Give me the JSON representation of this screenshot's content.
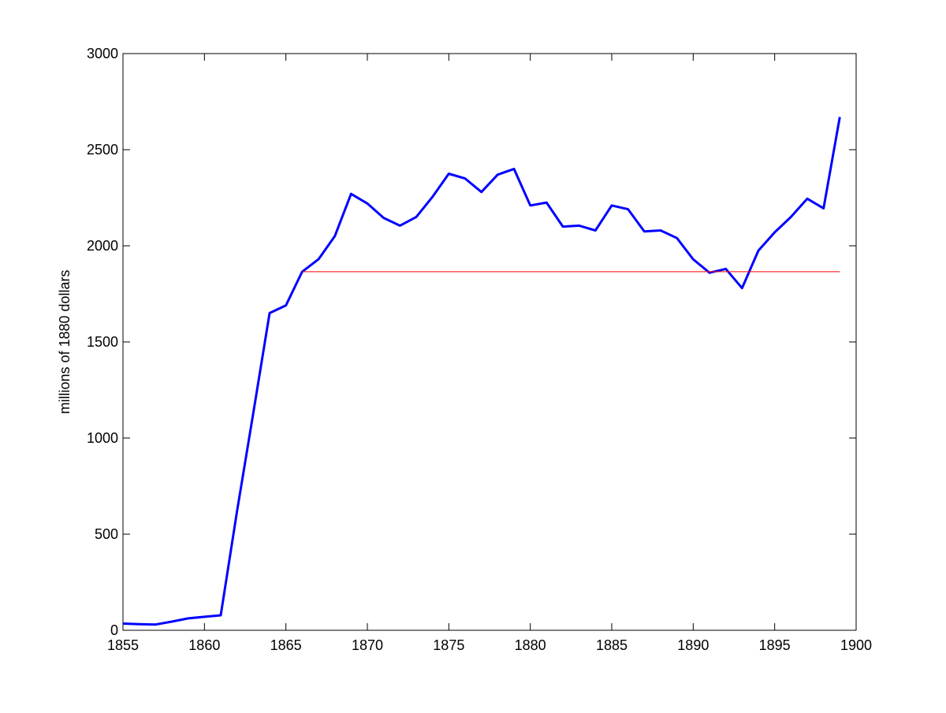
{
  "chart_data": {
    "type": "line",
    "title": "",
    "xlabel": "",
    "ylabel": "millions of 1880 dollars",
    "xlim": [
      1855,
      1900
    ],
    "ylim": [
      0,
      3000
    ],
    "xticks": [
      1855,
      1860,
      1865,
      1870,
      1875,
      1880,
      1885,
      1890,
      1895,
      1900
    ],
    "yticks": [
      0,
      500,
      1000,
      1500,
      2000,
      2500,
      3000
    ],
    "grid": false,
    "legend": "none",
    "series": [
      {
        "color": "#0000ff",
        "x": [
          1855,
          1856,
          1857,
          1858,
          1859,
          1860,
          1861,
          1862,
          1863,
          1864,
          1865,
          1866,
          1867,
          1868,
          1869,
          1870,
          1871,
          1872,
          1873,
          1874,
          1875,
          1876,
          1877,
          1878,
          1879,
          1880,
          1881,
          1882,
          1883,
          1884,
          1885,
          1886,
          1887,
          1888,
          1889,
          1890,
          1891,
          1892,
          1893,
          1894,
          1895,
          1896,
          1897,
          1898,
          1899
        ],
        "y": [
          35,
          32,
          30,
          45,
          62,
          70,
          78,
          620,
          1130,
          1650,
          1690,
          1865,
          1930,
          2050,
          2270,
          2220,
          2145,
          2105,
          2150,
          2255,
          2375,
          2350,
          2280,
          2370,
          2400,
          2210,
          2225,
          2100,
          2105,
          2080,
          2210,
          2190,
          2075,
          2080,
          2040,
          1930,
          1860,
          1880,
          1780,
          1975,
          2070,
          2150,
          2245,
          2195,
          2670
        ]
      },
      {
        "color": "#ff0000",
        "x": [
          1866,
          1899
        ],
        "y": [
          1865,
          1865
        ]
      }
    ]
  }
}
